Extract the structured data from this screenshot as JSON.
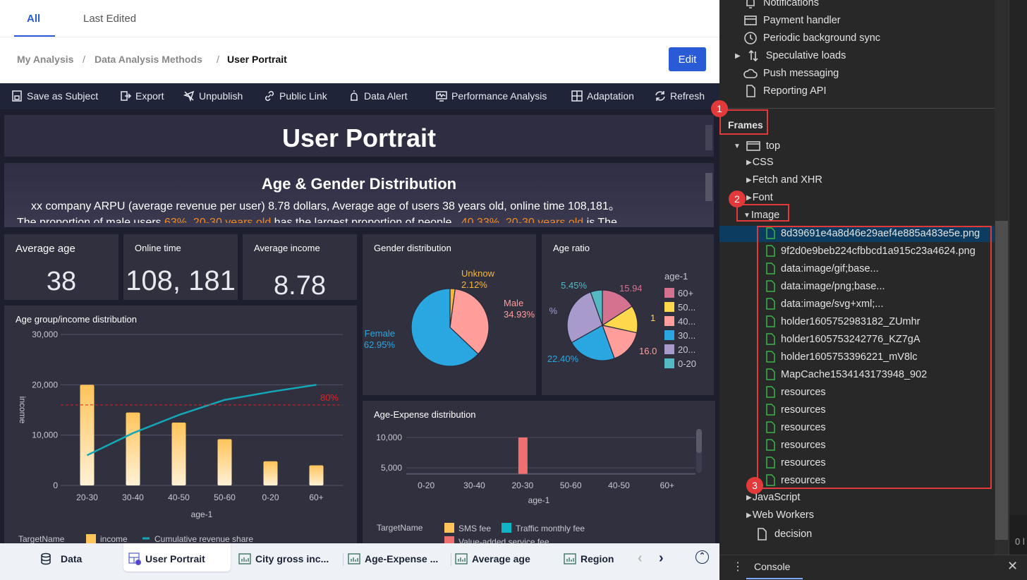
{
  "tabs": [
    "All",
    "Last Edited"
  ],
  "breadcrumb": [
    "My Analysis",
    "/",
    "Data Analysis Methods",
    "/",
    "User Portrait"
  ],
  "edit_label": "Edit",
  "toolbar": [
    "Save as Subject",
    "Export",
    "Unpublish",
    "Public Link",
    "Data Alert",
    "Performance Analysis",
    "Adaptation",
    "Refresh"
  ],
  "dashboard": {
    "title": "User Portrait",
    "summary_title": "Age & Gender Distribution",
    "summary_line1": "xx company ARPU (average revenue per user)  8.78 dollars,  Average age of users 38 years old, online time 108,181。",
    "summary_line2_parts": [
      "The proportion of male users ",
      "63%",
      ", ",
      "20-30 years old",
      " has the largest proportion of people  ,  ",
      "40.33%",
      ", ",
      "20-30 years old",
      " is The"
    ],
    "kpis": [
      {
        "label": "Average age",
        "value": "38"
      },
      {
        "label": "Online time",
        "value": "108, 181"
      },
      {
        "label": "Average income",
        "value": "8.78"
      }
    ]
  },
  "chart_data": [
    {
      "type": "bar",
      "title": "Age group/income distribution",
      "categories": [
        "20-30",
        "30-40",
        "40-50",
        "50-60",
        "0-20",
        "60+"
      ],
      "series": [
        {
          "name": "income",
          "type": "bar",
          "values": [
            20000,
            14500,
            12500,
            9200,
            4800,
            4000
          ]
        },
        {
          "name": "Cumulative revenue share",
          "type": "line",
          "values": [
            0.3,
            0.52,
            0.7,
            0.85,
            0.93,
            1.0
          ]
        }
      ],
      "xlabel": "age-1",
      "ylabel": "income",
      "ylim": [
        0,
        30000
      ],
      "yticks": [
        "0",
        "10,000",
        "20,000",
        "30,000"
      ],
      "reference_line": {
        "label": "80%",
        "value": 0.8
      },
      "legend_title": "TargetName",
      "colors": {
        "bar": "#ffc45a",
        "line": "#12a8b8",
        "ref": "#e02020"
      }
    },
    {
      "type": "pie",
      "title": "Gender distribution",
      "slices": [
        {
          "name": "Unknow",
          "value": 2.12,
          "label": "2.12%",
          "color": "#f7b733"
        },
        {
          "name": "Male",
          "value": 34.93,
          "label": "34.93%",
          "color": "#ff9e9b"
        },
        {
          "name": "Female",
          "value": 62.95,
          "label": "62.95%",
          "color": "#2aa7e0"
        }
      ]
    },
    {
      "type": "pie",
      "title": "Age ratio",
      "legend_title": "age-1",
      "slices": [
        {
          "name": "60+",
          "value": 15.94,
          "label": "15.94",
          "color": "#d4728f"
        },
        {
          "name": "50...",
          "value": 12.5,
          "label": "1",
          "color": "#ffd84d"
        },
        {
          "name": "40...",
          "value": 16.0,
          "label": "16.0",
          "color": "#ff9e9b"
        },
        {
          "name": "30...",
          "value": 22.4,
          "label": "22.40%",
          "color": "#2aa7e0"
        },
        {
          "name": "20...",
          "value": 27.71,
          "label": "%",
          "color": "#a89bcc"
        },
        {
          "name": "0-20",
          "value": 5.45,
          "label": "5.45%",
          "color": "#55b9c4"
        }
      ]
    },
    {
      "type": "bar",
      "title": "Age-Expense distribution",
      "categories": [
        "0-20",
        "30-40",
        "20-30",
        "50-60",
        "40-50",
        "60+"
      ],
      "series": [
        {
          "name": "SMS fee",
          "values": [
            0,
            0,
            0,
            0,
            0,
            0
          ],
          "color": "#ffc45a"
        },
        {
          "name": "Traffic monthly fee",
          "values": [
            0,
            0,
            0,
            0,
            0,
            0
          ],
          "color": "#0fb5c5"
        },
        {
          "name": "Value-added service fee",
          "values": [
            0,
            0,
            10000,
            0,
            0,
            0
          ],
          "color": "#f07070"
        }
      ],
      "xlabel": "age-1",
      "yticks": [
        "5,000",
        "10,000"
      ],
      "legend_title": "TargetName"
    }
  ],
  "bottom_tabs": [
    "Data",
    "User Portrait",
    "City gross inc...",
    "Age-Expense ...",
    "Average age",
    "Region"
  ],
  "devtools": {
    "app_items": [
      "Notifications",
      "Payment handler",
      "Periodic background sync",
      "Speculative loads",
      "Push messaging",
      "Reporting API"
    ],
    "frames_header": "Frames",
    "top": "top",
    "groups": [
      "CSS",
      "Fetch and XHR",
      "Font",
      "Image"
    ],
    "images": [
      "8d39691e4a8d46e29aef4e885a483e5e.png",
      "9f2d0e9beb224cfbbcd1a915c23a4624.png",
      "data:image/gif;base...",
      "data:image/png;base...",
      "data:image/svg+xml;...",
      "holder1605752983182_ZUmhr",
      "holder1605753242776_KZ7gA",
      "holder1605753396221_mV8lc",
      "MapCache1534143173948_902",
      "resources",
      "resources",
      "resources",
      "resources",
      "resources",
      "resources"
    ],
    "after": [
      "JavaScript",
      "Web Workers"
    ],
    "decision": "decision",
    "console_tab": "Console",
    "badges": [
      "1",
      "2",
      "3"
    ],
    "edge_text": "0 l"
  }
}
